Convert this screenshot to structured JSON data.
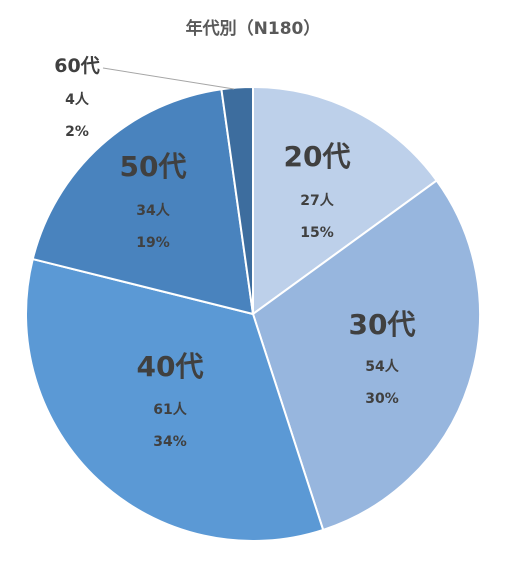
{
  "chart_data": {
    "type": "pie",
    "title": "年代別（N180）",
    "slices": [
      {
        "label": "20代",
        "count": "27人",
        "percent": "15%",
        "value": 27,
        "color": "#bdd0ea"
      },
      {
        "label": "30代",
        "count": "54人",
        "percent": "30%",
        "value": 54,
        "color": "#97b6de"
      },
      {
        "label": "40代",
        "count": "61人",
        "percent": "34%",
        "value": 61,
        "color": "#5b99d5"
      },
      {
        "label": "50代",
        "count": "34人",
        "percent": "19%",
        "value": 34,
        "color": "#4983be"
      },
      {
        "label": "60代",
        "count": "4人",
        "percent": "2%",
        "value": 4,
        "color": "#3d6d9e"
      }
    ]
  }
}
